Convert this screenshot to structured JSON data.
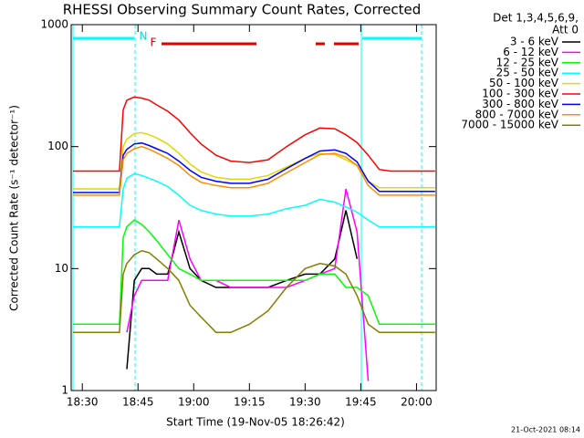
{
  "chart_data": {
    "type": "line",
    "title": "RHESSI Observing Summary Count Rates, Corrected",
    "y_label": "Corrected Count Rate (s⁻¹ detector⁻¹)",
    "x_label": "Start Time (19-Nov-05 18:26:42)",
    "legend_header": [
      "Det 1,3,4,5,6,9,",
      "Att 0"
    ],
    "footer": "21-Oct-2021 08:14",
    "annotations": [
      {
        "text": "N",
        "color": "#00e0e0"
      },
      {
        "text": "F",
        "color": "#e00000"
      }
    ],
    "yscale": "log",
    "xlim": [
      27,
      125.3
    ],
    "ylim": [
      1,
      1000
    ],
    "yticks": [
      1,
      10,
      100,
      1000
    ],
    "xticks": [
      {
        "value": 30,
        "label": "18:30"
      },
      {
        "value": 45,
        "label": "18:45"
      },
      {
        "value": 60,
        "label": "19:00"
      },
      {
        "value": 75,
        "label": "19:15"
      },
      {
        "value": 90,
        "label": "19:30"
      },
      {
        "value": 105,
        "label": "19:45"
      },
      {
        "value": 120,
        "label": "20:00"
      }
    ],
    "legend": "right",
    "x": [
      27.5,
      32,
      37,
      40,
      41,
      42,
      44,
      46,
      48,
      50,
      53,
      56,
      59,
      62,
      66,
      70,
      75,
      80,
      85,
      90,
      94,
      98,
      101,
      104,
      107,
      110,
      113,
      118,
      125
    ],
    "series": [
      {
        "name": "3 - 6 keV",
        "color": "#000000",
        "values": [
          null,
          null,
          null,
          null,
          null,
          1.5,
          8,
          10,
          10,
          9,
          9,
          20,
          10,
          8,
          7,
          7,
          7,
          7,
          8,
          9,
          9,
          12,
          30,
          12,
          null,
          null,
          null,
          null,
          null
        ]
      },
      {
        "name": "6 - 12 keV",
        "color": "#ff00ff",
        "values": [
          null,
          null,
          null,
          null,
          null,
          3,
          6,
          8,
          8,
          8,
          8,
          25,
          12,
          8,
          8,
          7,
          7,
          7,
          7,
          8,
          9,
          10,
          45,
          20,
          1.2,
          null,
          null,
          null,
          null
        ]
      },
      {
        "name": "12 - 25 keV",
        "color": "#00ff00",
        "values": [
          3.5,
          3.5,
          3.5,
          3.5,
          18,
          22,
          25,
          23,
          20,
          17,
          13,
          10,
          9,
          8,
          8,
          8,
          8,
          8,
          8,
          8,
          9,
          9,
          7,
          7,
          6,
          3.5,
          3.5,
          3.5,
          3.5
        ]
      },
      {
        "name": "25 - 50 keV",
        "color": "#00ffff",
        "values": [
          22,
          22,
          22,
          22,
          45,
          55,
          60,
          58,
          55,
          52,
          47,
          40,
          33,
          30,
          28,
          27,
          27,
          28,
          31,
          33,
          37,
          35,
          32,
          29,
          25,
          22,
          22,
          22,
          22
        ]
      },
      {
        "name": "50 - 100 keV",
        "color": "#e0d800",
        "values": [
          45,
          45,
          45,
          45,
          100,
          115,
          128,
          130,
          125,
          118,
          105,
          88,
          72,
          62,
          56,
          54,
          54,
          58,
          68,
          80,
          88,
          86,
          78,
          70,
          52,
          46,
          46,
          46,
          46
        ]
      },
      {
        "name": "100 - 300 keV",
        "color": "#ff0000",
        "values": [
          63,
          63,
          63,
          63,
          200,
          240,
          255,
          250,
          240,
          220,
          195,
          165,
          130,
          105,
          85,
          76,
          74,
          78,
          100,
          125,
          142,
          140,
          125,
          108,
          85,
          65,
          63,
          63,
          63
        ]
      },
      {
        "name": "300 - 800 keV",
        "color": "#0000ff",
        "values": [
          42,
          42,
          42,
          42,
          85,
          95,
          105,
          107,
          102,
          96,
          88,
          76,
          64,
          56,
          52,
          50,
          50,
          54,
          66,
          80,
          92,
          94,
          88,
          75,
          52,
          43,
          43,
          43,
          43
        ]
      },
      {
        "name": "800 - 7000 keV",
        "color": "#ff8c00",
        "values": [
          40,
          40,
          40,
          40,
          78,
          88,
          96,
          100,
          95,
          89,
          80,
          70,
          58,
          51,
          48,
          46,
          46,
          50,
          61,
          74,
          86,
          88,
          82,
          70,
          48,
          40,
          40,
          40,
          40
        ]
      },
      {
        "name": "7000 - 15000 keV",
        "color": "#808000",
        "values": [
          3,
          3,
          3,
          3,
          9,
          11,
          13,
          14,
          13.5,
          12,
          10,
          8,
          5,
          4,
          3,
          3,
          3.5,
          4.5,
          7,
          10,
          11,
          10.5,
          9,
          6,
          3.5,
          3,
          3,
          3,
          3
        ]
      }
    ]
  }
}
